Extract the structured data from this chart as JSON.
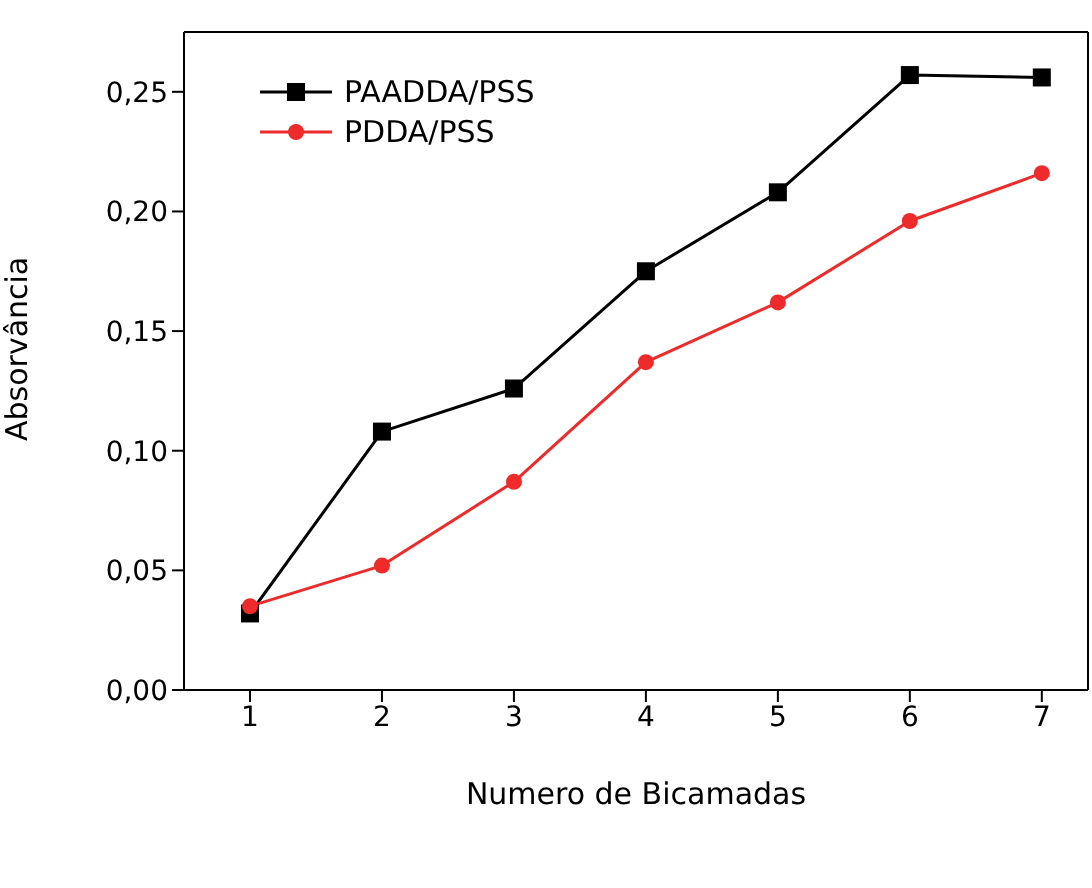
{
  "chart_data": {
    "type": "line",
    "xlabel": "Numero de Bicamadas",
    "ylabel": "Absorvância",
    "x": [
      1,
      2,
      3,
      4,
      5,
      6,
      7
    ],
    "series": [
      {
        "name": "PAADDA/PSS",
        "color": "#000000",
        "marker": "square",
        "values": [
          0.032,
          0.108,
          0.126,
          0.175,
          0.208,
          0.257,
          0.256
        ]
      },
      {
        "name": "PDDA/PSS",
        "color": "#ee2a2a",
        "marker": "circle",
        "values": [
          0.035,
          0.052,
          0.087,
          0.137,
          0.162,
          0.196,
          0.216
        ]
      }
    ],
    "xlim": [
      0.5,
      7.35
    ],
    "xticks": [
      1,
      2,
      3,
      4,
      5,
      6,
      7
    ],
    "ylim": [
      0,
      0.275
    ],
    "yticks": [
      {
        "value": 0,
        "label": "0,00"
      },
      {
        "value": 0.05,
        "label": "0,05"
      },
      {
        "value": 0.1,
        "label": "0,10"
      },
      {
        "value": 0.15,
        "label": "0,15"
      },
      {
        "value": 0.2,
        "label": "0,20"
      },
      {
        "value": 0.25,
        "label": "0,25"
      }
    ],
    "grid": false,
    "legend": "top left",
    "line_style": "solid"
  }
}
